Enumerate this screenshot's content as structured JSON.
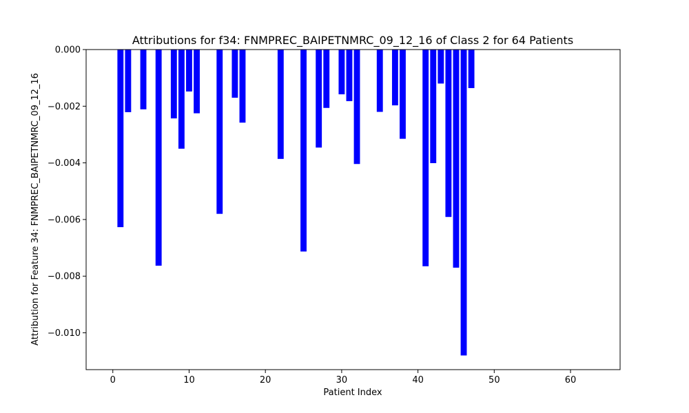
{
  "chart_data": {
    "type": "bar",
    "title": "Attributions for f34: FNMPREC_BAIPETNMRC_09_12_16 of Class 2 for 64 Patients",
    "xlabel": "Patient Index",
    "ylabel": "Attribution for Feature 34: FNMPREC_BAIPETNMRC_09_12_16",
    "xlim": [
      -3.5,
      66.5
    ],
    "ylim": [
      -0.0113,
      0.0
    ],
    "xticks": [
      0,
      10,
      20,
      30,
      40,
      50,
      60
    ],
    "yticks": [
      0.0,
      -0.002,
      -0.004,
      -0.006,
      -0.008,
      -0.01
    ],
    "ytick_labels": [
      "0.000",
      "−0.002",
      "−0.004",
      "−0.006",
      "−0.008",
      "−0.010"
    ],
    "bar_color": "#0000ff",
    "grid": false,
    "x": [
      1,
      2,
      4,
      6,
      8,
      9,
      10,
      11,
      14,
      16,
      17,
      22,
      25,
      27,
      28,
      30,
      31,
      32,
      35,
      37,
      38,
      41,
      42,
      43,
      44,
      45,
      46,
      47
    ],
    "values": [
      -0.00627,
      -0.00221,
      -0.00211,
      -0.00763,
      -0.00243,
      -0.0035,
      -0.00148,
      -0.00225,
      -0.0058,
      -0.0017,
      -0.00258,
      -0.00386,
      -0.00713,
      -0.00346,
      -0.00206,
      -0.00158,
      -0.00182,
      -0.00404,
      -0.0022,
      -0.00197,
      -0.00315,
      -0.00765,
      -0.00401,
      -0.0012,
      -0.00591,
      -0.0077,
      -0.0108,
      -0.00136
    ]
  }
}
